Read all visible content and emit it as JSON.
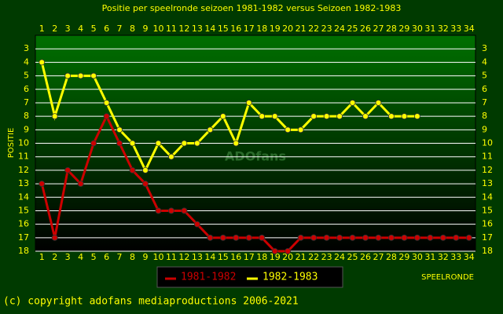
{
  "chart_data": {
    "type": "line",
    "title": "Positie per speelronde seizoen 1981-1982 versus Seizoen 1982-1983",
    "y_label": "POSITIE",
    "x_label": "SPEELRONDE",
    "watermark": "ADOfans",
    "footer": "(c) copyright adofans mediaproductions 2006-2021",
    "x": [
      1,
      2,
      3,
      4,
      5,
      6,
      7,
      8,
      9,
      10,
      11,
      12,
      13,
      14,
      15,
      16,
      17,
      18,
      19,
      20,
      21,
      22,
      23,
      24,
      25,
      26,
      27,
      28,
      29,
      30,
      31,
      32,
      33,
      34
    ],
    "series": [
      {
        "name": "1981-1982",
        "color": "#cc0000",
        "values": [
          13,
          17,
          12,
          13,
          10,
          8,
          10,
          12,
          13,
          15,
          15,
          15,
          16,
          17,
          17,
          17,
          17,
          17,
          18,
          18,
          17,
          17,
          17,
          17,
          17,
          17,
          17,
          17,
          17,
          17,
          17,
          17,
          17,
          17
        ]
      },
      {
        "name": "1982-1983",
        "color": "#ffff00",
        "values": [
          4,
          8,
          5,
          5,
          5,
          7,
          9,
          10,
          12,
          10,
          11,
          10,
          10,
          9,
          8,
          10,
          7,
          8,
          8,
          9,
          9,
          8,
          8,
          8,
          7,
          8,
          7,
          8,
          8,
          8,
          null,
          null,
          null,
          null
        ]
      }
    ],
    "xlim": [
      0.5,
      34.5
    ],
    "ylim": [
      2,
      18
    ],
    "y_inverted": true,
    "xticks": [
      1,
      2,
      3,
      4,
      5,
      6,
      7,
      8,
      9,
      10,
      11,
      12,
      13,
      14,
      15,
      16,
      17,
      18,
      19,
      20,
      21,
      22,
      23,
      24,
      25,
      26,
      27,
      28,
      29,
      30,
      31,
      32,
      33,
      34
    ],
    "yticks": [
      3,
      4,
      5,
      6,
      7,
      8,
      9,
      10,
      11,
      12,
      13,
      14,
      15,
      16,
      17,
      18
    ],
    "grid": true
  }
}
